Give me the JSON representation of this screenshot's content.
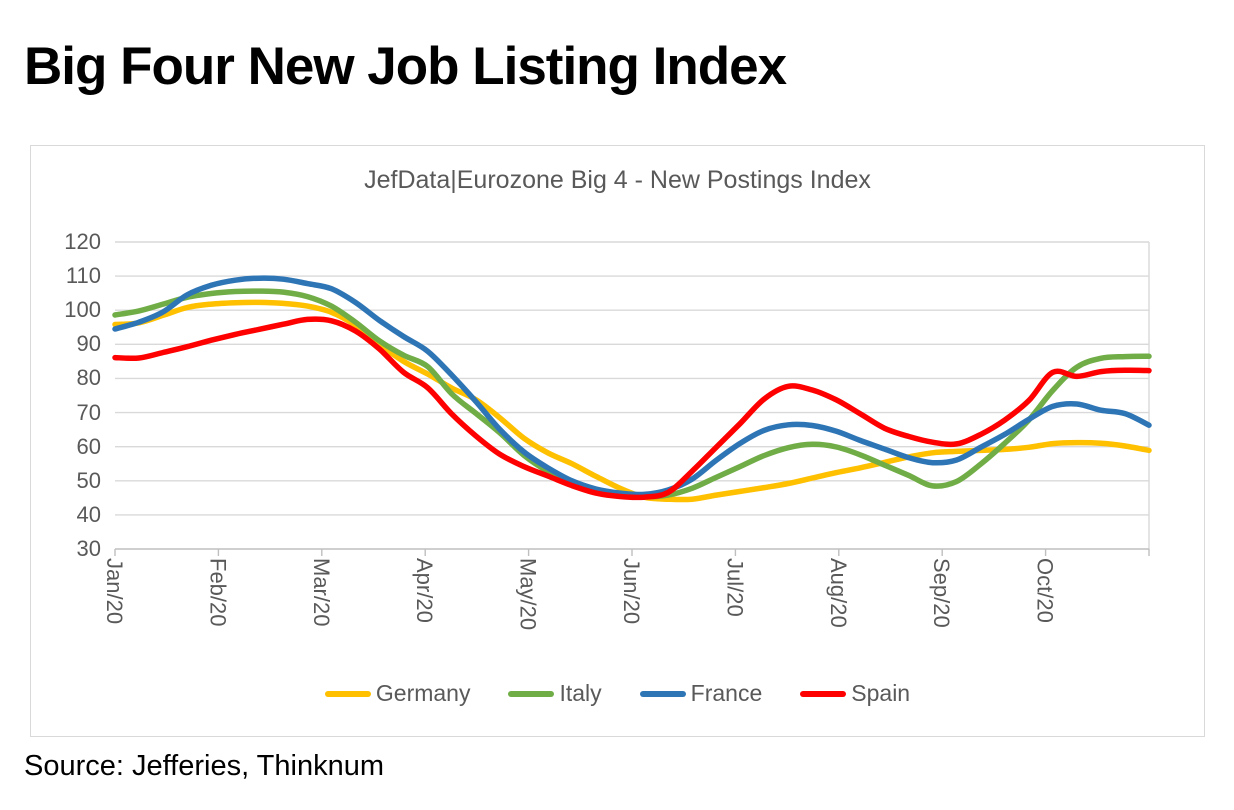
{
  "page": {
    "title": "Big Four New Job Listing Index",
    "source": "Source: Jefferies, Thinknum"
  },
  "colors": {
    "grid": "#D9D9D9",
    "axis": "#BFBFBF",
    "axis_text": "#595959",
    "title_text": "#000000"
  },
  "chart_data": {
    "type": "line",
    "title": "JefData|Eurozone Big 4 - New Postings Index",
    "x_tick_labels": [
      "Jan/20",
      "Feb/20",
      "Mar/20",
      "Apr/20",
      "May/20",
      "Jun/20",
      "Jul/20",
      "Aug/20",
      "Sep/20",
      "Oct/20"
    ],
    "x_sampling": "weekly, 44 points, Jan/20 through early Nov/20",
    "ylim": [
      30,
      120
    ],
    "y_ticks": [
      120,
      110,
      100,
      90,
      80,
      70,
      60,
      50,
      40,
      30
    ],
    "grid": true,
    "legend_position": "bottom",
    "series": [
      {
        "name": "Germany",
        "color": "#FFC000",
        "values": [
          95.8,
          96.3,
          98.5,
          100.8,
          101.8,
          102.2,
          102.3,
          102.0,
          101.2,
          99.4,
          95.6,
          90.0,
          85.0,
          81.3,
          77.2,
          73.8,
          68.5,
          62.5,
          58.2,
          55.0,
          51.3,
          47.8,
          45.2,
          44.6,
          44.6,
          45.8,
          46.9,
          48.0,
          49.2,
          50.8,
          52.4,
          53.8,
          55.4,
          57.0,
          58.2,
          58.6,
          58.9,
          59.2,
          59.8,
          60.9,
          61.2,
          61.0,
          60.2,
          58.9
        ]
      },
      {
        "name": "Italy",
        "color": "#70AD47",
        "values": [
          98.6,
          99.8,
          101.8,
          103.8,
          104.9,
          105.5,
          105.6,
          105.3,
          104.0,
          101.2,
          96.5,
          91.0,
          86.8,
          83.5,
          75.5,
          69.8,
          64.1,
          57.5,
          52.8,
          49.8,
          47.3,
          46.0,
          45.3,
          45.8,
          47.8,
          51.0,
          54.2,
          57.4,
          59.7,
          60.7,
          59.9,
          57.6,
          54.6,
          51.6,
          48.5,
          49.8,
          54.9,
          61.0,
          67.8,
          76.5,
          83.3,
          85.9,
          86.4,
          86.5
        ]
      },
      {
        "name": "France",
        "color": "#2E75B6",
        "values": [
          94.5,
          96.5,
          99.5,
          104.5,
          107.3,
          108.8,
          109.4,
          109.1,
          107.8,
          106.3,
          102.3,
          97.0,
          92.3,
          88.0,
          81.0,
          73.3,
          65.1,
          58.5,
          53.8,
          50.0,
          47.6,
          46.4,
          46.0,
          47.3,
          50.5,
          56.0,
          61.0,
          64.8,
          66.4,
          66.2,
          64.5,
          61.8,
          59.3,
          56.8,
          55.3,
          56.1,
          59.8,
          63.6,
          68.0,
          71.8,
          72.5,
          70.7,
          69.7,
          66.3
        ]
      },
      {
        "name": "Spain",
        "color": "#FF0000",
        "values": [
          86.1,
          86.0,
          87.6,
          89.3,
          91.2,
          92.9,
          94.4,
          95.9,
          97.3,
          96.9,
          93.9,
          88.6,
          81.8,
          77.3,
          69.6,
          63.2,
          57.8,
          54.2,
          51.4,
          48.6,
          46.4,
          45.4,
          45.2,
          46.6,
          52.8,
          59.8,
          66.8,
          74.0,
          77.7,
          76.6,
          73.7,
          69.6,
          65.4,
          63.0,
          61.3,
          60.8,
          63.6,
          67.8,
          73.5,
          81.8,
          80.6,
          82.0,
          82.4,
          82.3
        ]
      }
    ]
  }
}
